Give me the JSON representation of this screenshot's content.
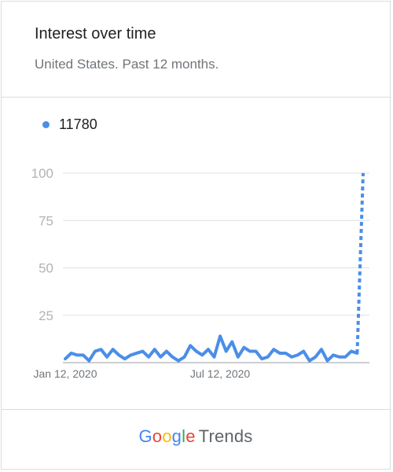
{
  "card": {
    "title": "Interest over time",
    "subtitle": "United States. Past 12 months."
  },
  "legend": {
    "label": "11780",
    "color": "#4a8ee8"
  },
  "footer": {
    "brand_letters": [
      {
        "ch": "G",
        "color": "#4285f4"
      },
      {
        "ch": "o",
        "color": "#ea4335"
      },
      {
        "ch": "o",
        "color": "#fbbc05"
      },
      {
        "ch": "g",
        "color": "#4285f4"
      },
      {
        "ch": "l",
        "color": "#34a853"
      },
      {
        "ch": "e",
        "color": "#ea4335"
      }
    ],
    "product": "Trends"
  },
  "chart_data": {
    "type": "line",
    "series": [
      {
        "name": "11780",
        "color": "#4a8ee8",
        "values": [
          2,
          5,
          4,
          4,
          1,
          6,
          7,
          3,
          7,
          4,
          2,
          4,
          5,
          6,
          3,
          7,
          3,
          6,
          3,
          1,
          3,
          9,
          6,
          4,
          7,
          3,
          14,
          6,
          11,
          3,
          8,
          6,
          6,
          2,
          3,
          7,
          5,
          5,
          3,
          4,
          6,
          1,
          3,
          7,
          1,
          4,
          3,
          3,
          6,
          5,
          100
        ],
        "dashed_from_index": 49
      }
    ],
    "x_tick_labels": [
      "Jan 12, 2020",
      "Jul 12, 2020"
    ],
    "x_tick_indices": [
      0,
      26
    ],
    "y_ticks": [
      "100",
      "75",
      "50",
      "25"
    ],
    "y_tick_values": [
      100,
      75,
      50,
      25
    ],
    "ylim": [
      0,
      100
    ],
    "grid": true
  }
}
